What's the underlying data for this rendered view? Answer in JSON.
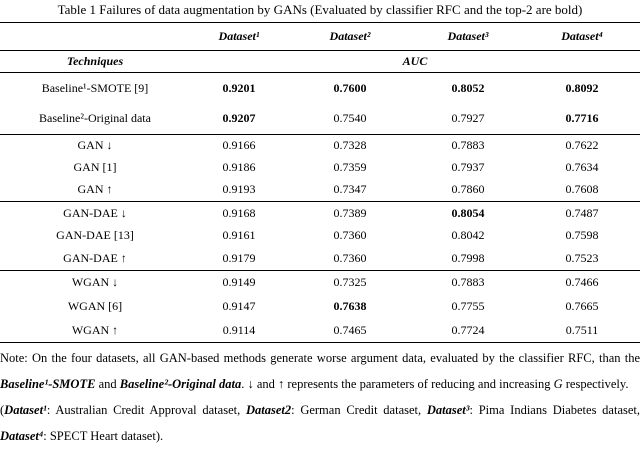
{
  "title": "Table 1 Failures of data augmentation by GANs (Evaluated by classifier RFC and the top-2 are bold)",
  "table": {
    "columns": [
      "Dataset¹",
      "Dataset²",
      "Dataset³",
      "Dataset⁴"
    ],
    "techniques_label": "Techniques",
    "metric_label": "AUC",
    "groups": [
      {
        "rows": [
          {
            "label": "Baseline¹-SMOTE [9]",
            "cells": [
              "0.9201",
              "0.7600",
              "0.8052",
              "0.8092"
            ],
            "bold": [
              true,
              true,
              true,
              true
            ]
          },
          {
            "label": "Baseline²-Original data",
            "cells": [
              "0.9207",
              "0.7540",
              "0.7927",
              "0.7716"
            ],
            "bold": [
              true,
              false,
              false,
              true
            ]
          }
        ]
      },
      {
        "rows": [
          {
            "label": "GAN ↓",
            "cells": [
              "0.9166",
              "0.7328",
              "0.7883",
              "0.7622"
            ],
            "bold": [
              false,
              false,
              false,
              false
            ]
          },
          {
            "label": "GAN [1]",
            "cells": [
              "0.9186",
              "0.7359",
              "0.7937",
              "0.7634"
            ],
            "bold": [
              false,
              false,
              false,
              false
            ]
          },
          {
            "label": "GAN ↑",
            "cells": [
              "0.9193",
              "0.7347",
              "0.7860",
              "0.7608"
            ],
            "bold": [
              false,
              false,
              false,
              false
            ]
          }
        ]
      },
      {
        "rows": [
          {
            "label": "GAN-DAE ↓",
            "cells": [
              "0.9168",
              "0.7389",
              "0.8054",
              "0.7487"
            ],
            "bold": [
              false,
              false,
              true,
              false
            ]
          },
          {
            "label": "GAN-DAE [13]",
            "cells": [
              "0.9161",
              "0.7360",
              "0.8042",
              "0.7598"
            ],
            "bold": [
              false,
              false,
              false,
              false
            ]
          },
          {
            "label": "GAN-DAE ↑",
            "cells": [
              "0.9179",
              "0.7360",
              "0.7998",
              "0.7523"
            ],
            "bold": [
              false,
              false,
              false,
              false
            ]
          }
        ]
      },
      {
        "rows": [
          {
            "label": "WGAN ↓",
            "cells": [
              "0.9149",
              "0.7325",
              "0.7883",
              "0.7466"
            ],
            "bold": [
              false,
              false,
              false,
              false
            ]
          },
          {
            "label": "WGAN [6]",
            "cells": [
              "0.9147",
              "0.7638",
              "0.7755",
              "0.7665"
            ],
            "bold": [
              false,
              true,
              false,
              false
            ]
          },
          {
            "label": "WGAN ↑",
            "cells": [
              "0.9114",
              "0.7465",
              "0.7724",
              "0.7511"
            ],
            "bold": [
              false,
              false,
              false,
              false
            ]
          }
        ]
      }
    ]
  },
  "note": [
    [
      {
        "text": "Note: On the four datasets, all GAN-based methods generate worse argument data, evaluated by the classifier RFC, than the "
      },
      {
        "text": "Baseline¹-SMOTE",
        "style": "bold-italic"
      },
      {
        "text": " and "
      },
      {
        "text": "Baseline²-Original data",
        "style": "bold-italic"
      },
      {
        "text": ".  ↓  and  ↑  represents the parameters of reducing and increasing "
      },
      {
        "text": "G",
        "style": "italic"
      },
      {
        "text": " respectively."
      }
    ],
    [
      {
        "text": "("
      },
      {
        "text": "Dataset¹",
        "style": "bold-italic"
      },
      {
        "text": ": Australian Credit Approval dataset, "
      },
      {
        "text": "Dataset2",
        "style": "bold-italic"
      },
      {
        "text": ": German Credit dataset, "
      },
      {
        "text": "Dataset³",
        "style": "bold-italic"
      },
      {
        "text": ": Pima Indians Diabetes dataset, "
      },
      {
        "text": "Dataset⁴",
        "style": "bold-italic"
      },
      {
        "text": ": SPECT Heart dataset)."
      }
    ]
  ]
}
